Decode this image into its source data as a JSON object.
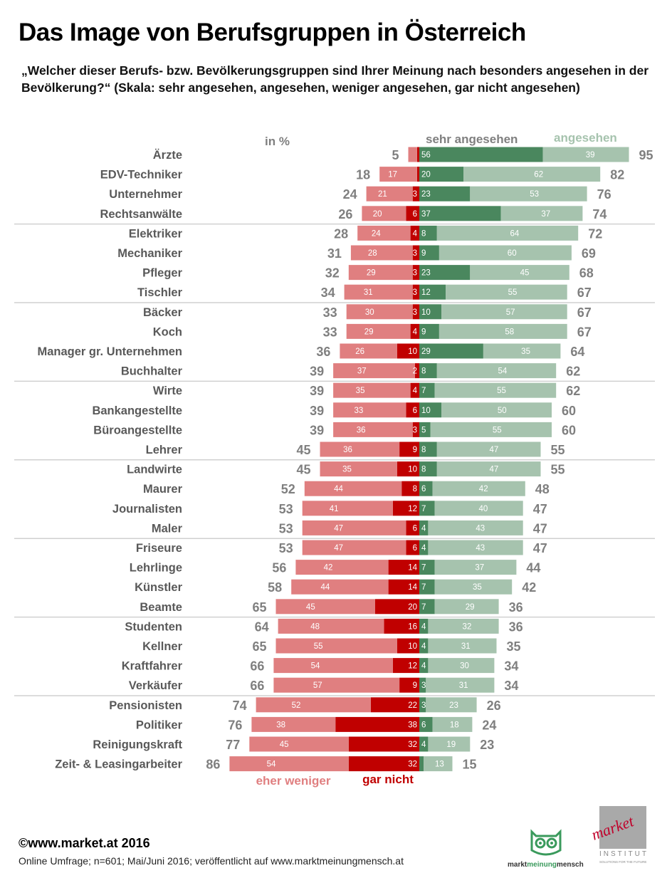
{
  "header": {
    "title": "Das Image von Berufsgruppen in Österreich",
    "subtitle": "„Welcher dieser Berufs- bzw. Bevölkerungsgruppen sind Ihrer Meinung nach besonders angesehen in der Bevölkerung?“ (Skala: sehr angesehen, angesehen, weniger angesehen, gar nicht angesehen)"
  },
  "chart_data": {
    "type": "bar",
    "subtype": "diverging-stacked-horizontal",
    "title": "Das Image von Berufsgruppen in Österreich",
    "unit_label": "in %",
    "legend": {
      "sehr_angesehen": "sehr angesehen",
      "angesehen": "angesehen",
      "eher_weniger": "eher weniger",
      "gar_nicht": "gar nicht"
    },
    "colors": {
      "sehr_angesehen": "#4a875e",
      "angesehen": "#a6c3ae",
      "eher_weniger": "#e07f80",
      "gar_nicht": "#c00000",
      "totals": "#7f7f7f",
      "labels": "#595959"
    },
    "categories": [
      "Ärzte",
      "EDV-Techniker",
      "Unternehmer",
      "Rechtsanwälte",
      "Elektriker",
      "Mechaniker",
      "Pfleger",
      "Tischler",
      "Bäcker",
      "Koch",
      "Manager gr. Unternehmen",
      "Buchhalter",
      "Wirte",
      "Bankangestellte",
      "Büroangestellte",
      "Lehrer",
      "Landwirte",
      "Maurer",
      "Journalisten",
      "Maler",
      "Friseure",
      "Lehrlinge",
      "Künstler",
      "Beamte",
      "Studenten",
      "Kellner",
      "Kraftfahrer",
      "Verkäufer",
      "Pensionisten",
      "Politiker",
      "Reinigungskraft",
      "Zeit- & Leasingarbeiter"
    ],
    "series": [
      {
        "name": "eher weniger",
        "values": [
          null,
          17,
          21,
          20,
          24,
          28,
          29,
          31,
          30,
          29,
          26,
          37,
          35,
          33,
          36,
          36,
          35,
          44,
          41,
          47,
          47,
          42,
          44,
          45,
          48,
          55,
          54,
          57,
          52,
          38,
          45,
          54
        ]
      },
      {
        "name": "gar nicht",
        "values": [
          null,
          null,
          3,
          6,
          4,
          3,
          3,
          3,
          3,
          4,
          10,
          2,
          4,
          6,
          3,
          9,
          10,
          8,
          12,
          6,
          6,
          14,
          14,
          20,
          16,
          10,
          12,
          9,
          22,
          38,
          32,
          32
        ]
      },
      {
        "name": "sehr angesehen",
        "values": [
          56,
          20,
          23,
          37,
          8,
          9,
          23,
          12,
          10,
          9,
          29,
          8,
          7,
          10,
          5,
          8,
          8,
          6,
          7,
          4,
          4,
          7,
          7,
          7,
          4,
          4,
          4,
          3,
          3,
          6,
          4,
          null
        ]
      },
      {
        "name": "angesehen",
        "values": [
          39,
          62,
          53,
          37,
          64,
          60,
          45,
          55,
          57,
          58,
          35,
          54,
          55,
          50,
          55,
          47,
          47,
          42,
          40,
          43,
          43,
          37,
          35,
          29,
          32,
          31,
          30,
          31,
          23,
          18,
          19,
          13
        ]
      }
    ],
    "negative_totals": [
      5,
      18,
      24,
      26,
      28,
      31,
      32,
      34,
      33,
      33,
      36,
      39,
      39,
      39,
      39,
      45,
      45,
      52,
      53,
      53,
      53,
      56,
      58,
      65,
      64,
      65,
      66,
      66,
      74,
      76,
      77,
      86
    ],
    "positive_totals": [
      95,
      82,
      76,
      74,
      72,
      69,
      68,
      67,
      67,
      67,
      64,
      62,
      62,
      60,
      60,
      55,
      55,
      48,
      47,
      47,
      47,
      44,
      42,
      36,
      36,
      35,
      34,
      34,
      26,
      24,
      23,
      15
    ],
    "hidden_segments_note": "Segments too small to label have no printed value (null)",
    "group_separators_after_index": [
      3,
      7,
      11,
      15,
      19,
      23,
      27
    ],
    "xlim": [
      -90,
      100
    ]
  },
  "footer": {
    "copyright": "©www.market.at 2016",
    "note": "Online Umfrage; n=601; Mai/Juni 2016; veröffentlicht auf www.marktmeinungmensch.at"
  },
  "logos": {
    "mmm_left": "markt",
    "mmm_mid": "meinung",
    "mmm_right": "mensch",
    "market_word": "market",
    "market_institut": "INSTITUT",
    "market_tag": "SOLUTIONS FOR THE FUTURE"
  }
}
